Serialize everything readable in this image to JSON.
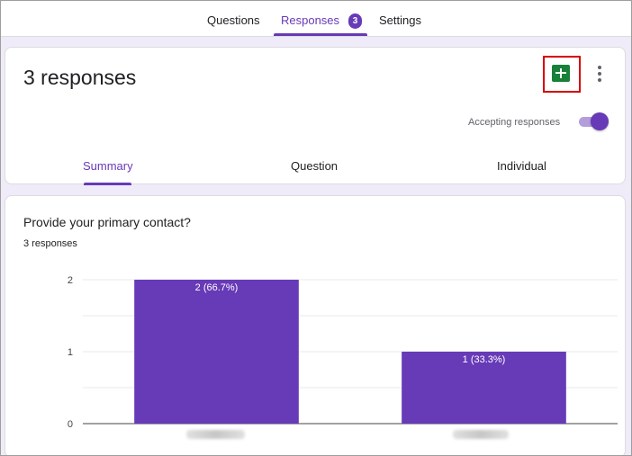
{
  "tabs": {
    "questions": "Questions",
    "responses": "Responses",
    "responses_badge": "3",
    "settings": "Settings"
  },
  "header": {
    "title": "3 responses",
    "accepting_label": "Accepting responses",
    "accepting_on": true,
    "link_sheets_icon": "google-sheets-icon",
    "more_icon": "more-vert-icon"
  },
  "subtabs": {
    "summary": "Summary",
    "question": "Question",
    "individual": "Individual"
  },
  "question": {
    "title": "Provide your primary contact?",
    "count": "3 responses"
  },
  "colors": {
    "accent": "#673ab7",
    "sheets_green": "#188038",
    "highlight_red": "#d50000"
  },
  "chart_data": {
    "type": "bar",
    "categories": [
      "",
      ""
    ],
    "values": [
      2,
      1
    ],
    "data_labels": [
      "2 (66.7%)",
      "1 (33.3%)"
    ],
    "yticks": [
      "0",
      "1",
      "2"
    ],
    "ylim": [
      0,
      2
    ],
    "grid": true,
    "bar_color": "#673ab7"
  }
}
